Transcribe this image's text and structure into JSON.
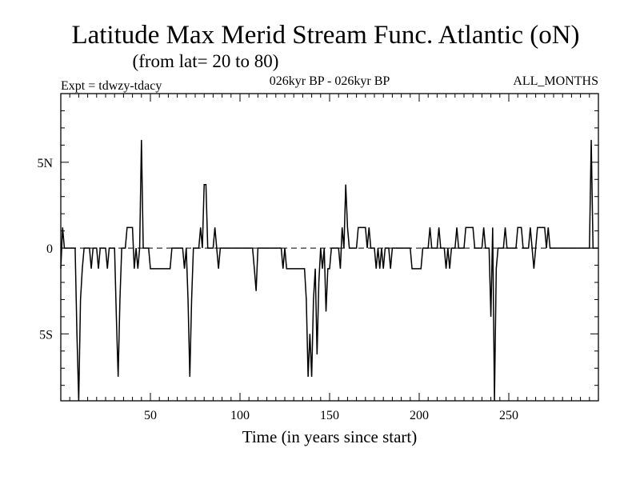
{
  "chart_data": {
    "type": "line",
    "title": "Latitude Max Merid Stream Func. Atlantic (oN)",
    "subtitle": "(from lat= 20 to 80)",
    "expt_label": "Expt = tdwzy-tdacy",
    "period_label": "026kyr BP - 026kyr BP",
    "months_label": "ALL_MONTHS",
    "xlabel": "Time (in years since start)",
    "ylabel": "",
    "xlim": [
      0,
      300
    ],
    "ylim": [
      -8.9,
      9.0
    ],
    "x_ticks": [
      50,
      100,
      150,
      200,
      250
    ],
    "x_tick_labels": [
      "50",
      "100",
      "150",
      "200",
      "250"
    ],
    "y_ticks": [
      5,
      0,
      -5
    ],
    "y_tick_labels": [
      "5N",
      "0",
      "5S"
    ],
    "zero_line": "dashed",
    "grid": false,
    "series": [
      {
        "name": "",
        "color": "#000000",
        "points": [
          [
            0,
            -1.2
          ],
          [
            1,
            1.2
          ],
          [
            2,
            0
          ],
          [
            8,
            0
          ],
          [
            9,
            -5
          ],
          [
            10,
            -8.9
          ],
          [
            11,
            -3
          ],
          [
            12,
            -1.2
          ],
          [
            13,
            0
          ],
          [
            16,
            0
          ],
          [
            17,
            -1.2
          ],
          [
            18,
            0
          ],
          [
            20,
            0
          ],
          [
            21,
            -1.2
          ],
          [
            22,
            0
          ],
          [
            25,
            0
          ],
          [
            26,
            -1.2
          ],
          [
            27,
            0
          ],
          [
            30,
            0
          ],
          [
            31,
            -4
          ],
          [
            32,
            -7.5
          ],
          [
            33,
            -3
          ],
          [
            34,
            0
          ],
          [
            36,
            0
          ],
          [
            37,
            1.2
          ],
          [
            40,
            1.2
          ],
          [
            41,
            -1.2
          ],
          [
            42,
            0
          ],
          [
            43,
            -1.2
          ],
          [
            44,
            0
          ],
          [
            45,
            6.3
          ],
          [
            46,
            0
          ],
          [
            49,
            0
          ],
          [
            50,
            -1.2
          ],
          [
            61,
            -1.2
          ],
          [
            62,
            0
          ],
          [
            68,
            0
          ],
          [
            69,
            -1.2
          ],
          [
            70,
            0
          ],
          [
            71,
            -3
          ],
          [
            72,
            -7.5
          ],
          [
            73,
            -3
          ],
          [
            74,
            0
          ],
          [
            77,
            0
          ],
          [
            78,
            1.2
          ],
          [
            79,
            0
          ],
          [
            80,
            3.7
          ],
          [
            81,
            3.7
          ],
          [
            82,
            0
          ],
          [
            85,
            0
          ],
          [
            86,
            1.2
          ],
          [
            87,
            0
          ],
          [
            88,
            -1.2
          ],
          [
            89,
            0
          ],
          [
            107,
            0
          ],
          [
            108,
            -1.2
          ],
          [
            109,
            -2.5
          ],
          [
            110,
            0
          ],
          [
            123,
            0
          ],
          [
            124,
            -1.2
          ],
          [
            125,
            0
          ],
          [
            126,
            -1.2
          ],
          [
            136,
            -1.2
          ],
          [
            137,
            -3
          ],
          [
            138,
            -7.5
          ],
          [
            139,
            -5
          ],
          [
            140,
            -7.5
          ],
          [
            141,
            -3
          ],
          [
            142,
            -1.2
          ],
          [
            143,
            -6.2
          ],
          [
            144,
            -2
          ],
          [
            145,
            0
          ],
          [
            146,
            -1.2
          ],
          [
            147,
            0
          ],
          [
            148,
            -3.7
          ],
          [
            149,
            -1.2
          ],
          [
            150,
            -1.2
          ],
          [
            151,
            0
          ],
          [
            155,
            0
          ],
          [
            156,
            -1.2
          ],
          [
            157,
            1.2
          ],
          [
            158,
            0
          ],
          [
            159,
            3.7
          ],
          [
            160,
            1.2
          ],
          [
            161,
            0
          ],
          [
            165,
            0
          ],
          [
            166,
            1.2
          ],
          [
            170,
            1.2
          ],
          [
            171,
            0
          ],
          [
            172,
            1.2
          ],
          [
            173,
            0
          ],
          [
            175,
            0
          ],
          [
            176,
            -1.2
          ],
          [
            177,
            0
          ],
          [
            178,
            -1.2
          ],
          [
            179,
            0
          ],
          [
            180,
            -1.2
          ],
          [
            181,
            0
          ],
          [
            183,
            0
          ],
          [
            184,
            -1.2
          ],
          [
            185,
            0
          ],
          [
            195,
            0
          ],
          [
            196,
            -1.2
          ],
          [
            201,
            -1.2
          ],
          [
            202,
            0
          ],
          [
            205,
            0
          ],
          [
            206,
            1.2
          ],
          [
            207,
            0
          ],
          [
            210,
            0
          ],
          [
            211,
            1.2
          ],
          [
            212,
            0
          ],
          [
            214,
            0
          ],
          [
            215,
            -1.2
          ],
          [
            216,
            0
          ],
          [
            217,
            -1.2
          ],
          [
            218,
            0
          ],
          [
            220,
            0
          ],
          [
            221,
            1.2
          ],
          [
            222,
            0
          ],
          [
            225,
            0
          ],
          [
            226,
            1.2
          ],
          [
            230,
            1.2
          ],
          [
            231,
            0
          ],
          [
            235,
            0
          ],
          [
            236,
            1.2
          ],
          [
            237,
            0
          ],
          [
            239,
            0
          ],
          [
            240,
            -4
          ],
          [
            241,
            1.2
          ],
          [
            242,
            -8.9
          ],
          [
            243,
            -1.2
          ],
          [
            244,
            0
          ],
          [
            247,
            0
          ],
          [
            248,
            1.2
          ],
          [
            249,
            0
          ],
          [
            254,
            0
          ],
          [
            255,
            1.2
          ],
          [
            257,
            1.2
          ],
          [
            258,
            0
          ],
          [
            261,
            0
          ],
          [
            262,
            1.2
          ],
          [
            263,
            0
          ],
          [
            264,
            -1.2
          ],
          [
            265,
            0
          ],
          [
            266,
            1.2
          ],
          [
            270,
            1.2
          ],
          [
            271,
            0
          ],
          [
            272,
            1.2
          ],
          [
            273,
            0
          ],
          [
            295,
            0
          ],
          [
            296,
            6.3
          ],
          [
            297,
            0
          ],
          [
            300,
            0
          ]
        ]
      }
    ]
  }
}
